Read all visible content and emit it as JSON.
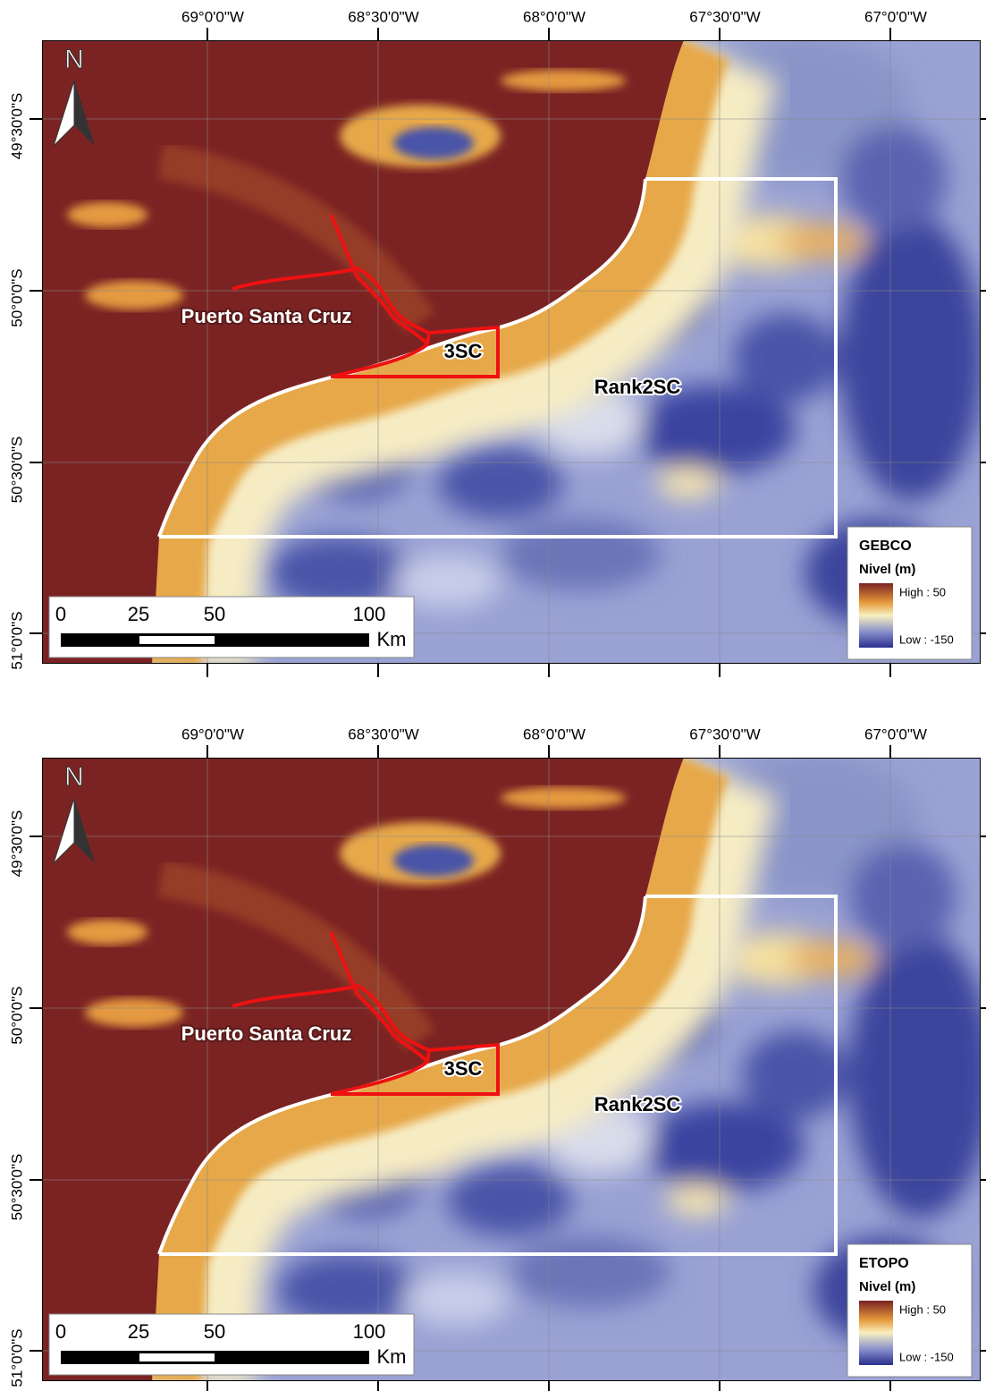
{
  "panels": [
    {
      "lon_labels": [
        "69°0'0\"W",
        "68°30'0\"W",
        "68°0'0\"W",
        "67°30'0\"W",
        "67°0'0\"W"
      ],
      "lat_labels": [
        "49°30'0\"S",
        "50°0'0\"S",
        "50°30'0\"S",
        "51°0'0\"S"
      ],
      "north": "N",
      "places": [
        "Puerto Santa Cruz",
        "3SC",
        "Rank2SC"
      ],
      "scale": [
        "0",
        "25",
        "50",
        "100",
        "Km"
      ],
      "legend": {
        "title": "GEBCO",
        "subtitle": "Nivel (m)",
        "high": "High : 50",
        "low": "Low : -150"
      }
    },
    {
      "lon_labels": [
        "69°0'0\"W",
        "68°30'0\"W",
        "68°0'0\"W",
        "67°30'0\"W",
        "67°0'0\"W"
      ],
      "lat_labels": [
        "49°30'0\"S",
        "50°0'0\"S",
        "50°30'0\"S",
        "51°0'0\"S"
      ],
      "north": "N",
      "places": [
        "Puerto Santa Cruz",
        "3SC",
        "Rank2SC"
      ],
      "scale": [
        "0",
        "25",
        "50",
        "100",
        "Km"
      ],
      "legend": {
        "title": "ETOPO",
        "subtitle": "Nivel (m)",
        "high": "High : 50",
        "low": "Low : -150"
      }
    }
  ]
}
